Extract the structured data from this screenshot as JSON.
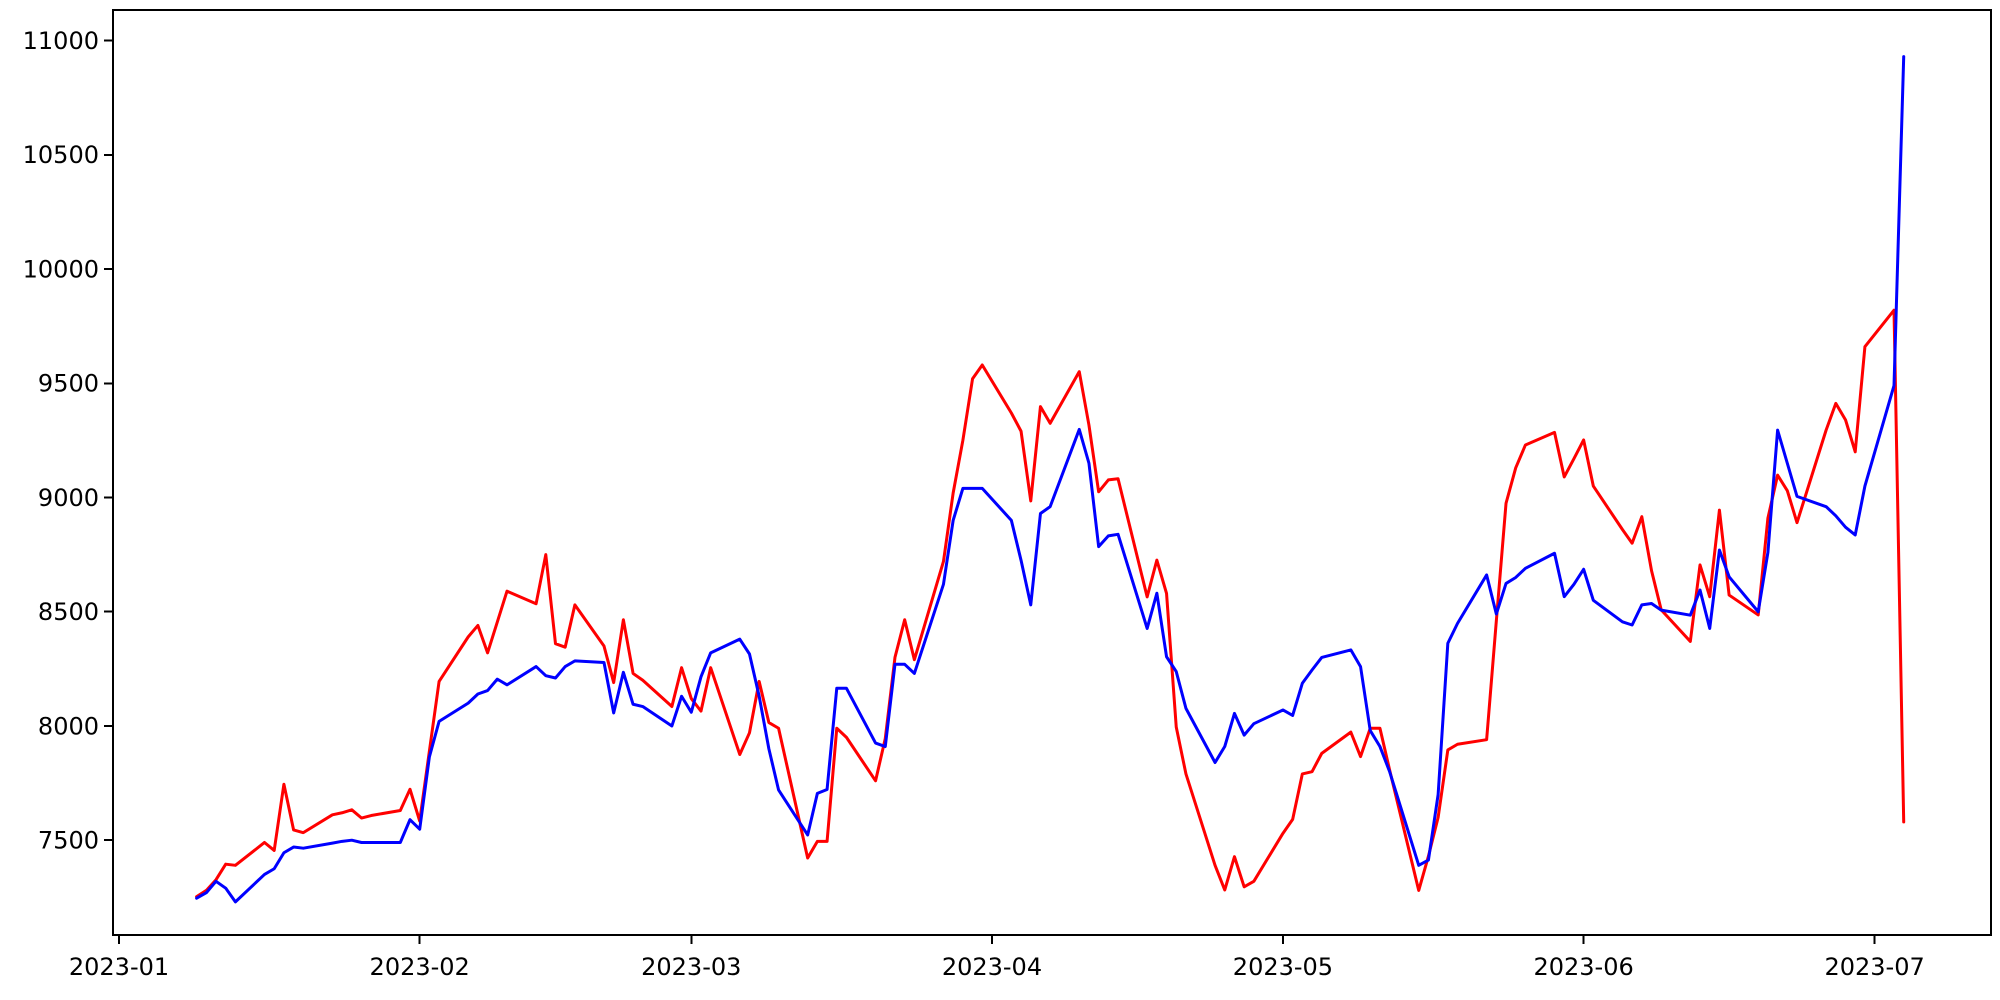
{
  "chart_data": {
    "type": "line",
    "title": "",
    "xlabel": "",
    "ylabel": "",
    "grid": false,
    "legend": null,
    "background_color": "#ffffff",
    "spine_color": "#000000",
    "tick_label_color": "#000000",
    "ylim": [
      7085,
      11134
    ],
    "xlim_days_from_jan1_2023": [
      -0.62,
      193.0
    ],
    "y_ticks": [
      7500,
      8000,
      8500,
      9000,
      9500,
      10000,
      10500,
      11000
    ],
    "x_ticks": [
      {
        "label": "2023-01",
        "date": "2023-01-01"
      },
      {
        "label": "2023-02",
        "date": "2023-02-01"
      },
      {
        "label": "2023-03",
        "date": "2023-03-01"
      },
      {
        "label": "2023-04",
        "date": "2023-04-01"
      },
      {
        "label": "2023-05",
        "date": "2023-05-01"
      },
      {
        "label": "2023-06",
        "date": "2023-06-01"
      },
      {
        "label": "2023-07",
        "date": "2023-07-01"
      }
    ],
    "x": [
      "2023-01-09",
      "2023-01-10",
      "2023-01-11",
      "2023-01-12",
      "2023-01-13",
      "2023-01-16",
      "2023-01-17",
      "2023-01-18",
      "2023-01-19",
      "2023-01-20",
      "2023-01-23",
      "2023-01-24",
      "2023-01-25",
      "2023-01-26",
      "2023-01-27",
      "2023-01-30",
      "2023-01-31",
      "2023-02-01",
      "2023-02-02",
      "2023-02-03",
      "2023-02-06",
      "2023-02-07",
      "2023-02-08",
      "2023-02-09",
      "2023-02-10",
      "2023-02-13",
      "2023-02-14",
      "2023-02-15",
      "2023-02-16",
      "2023-02-17",
      "2023-02-20",
      "2023-02-21",
      "2023-02-22",
      "2023-02-23",
      "2023-02-24",
      "2023-02-27",
      "2023-02-28",
      "2023-03-01",
      "2023-03-02",
      "2023-03-03",
      "2023-03-06",
      "2023-03-07",
      "2023-03-08",
      "2023-03-09",
      "2023-03-10",
      "2023-03-13",
      "2023-03-14",
      "2023-03-15",
      "2023-03-16",
      "2023-03-17",
      "2023-03-20",
      "2023-03-21",
      "2023-03-22",
      "2023-03-23",
      "2023-03-24",
      "2023-03-27",
      "2023-03-28",
      "2023-03-29",
      "2023-03-30",
      "2023-03-31",
      "2023-04-03",
      "2023-04-04",
      "2023-04-05",
      "2023-04-06",
      "2023-04-07",
      "2023-04-10",
      "2023-04-11",
      "2023-04-12",
      "2023-04-13",
      "2023-04-14",
      "2023-04-17",
      "2023-04-18",
      "2023-04-19",
      "2023-04-20",
      "2023-04-21",
      "2023-04-24",
      "2023-04-25",
      "2023-04-26",
      "2023-04-27",
      "2023-04-28",
      "2023-05-01",
      "2023-05-02",
      "2023-05-03",
      "2023-05-04",
      "2023-05-05",
      "2023-05-08",
      "2023-05-09",
      "2023-05-10",
      "2023-05-11",
      "2023-05-12",
      "2023-05-15",
      "2023-05-16",
      "2023-05-17",
      "2023-05-18",
      "2023-05-19",
      "2023-05-22",
      "2023-05-23",
      "2023-05-24",
      "2023-05-25",
      "2023-05-26",
      "2023-05-29",
      "2023-05-30",
      "2023-05-31",
      "2023-06-01",
      "2023-06-02",
      "2023-06-05",
      "2023-06-06",
      "2023-06-07",
      "2023-06-08",
      "2023-06-09",
      "2023-06-12",
      "2023-06-13",
      "2023-06-14",
      "2023-06-15",
      "2023-06-16",
      "2023-06-19",
      "2023-06-20",
      "2023-06-21",
      "2023-06-22",
      "2023-06-23",
      "2023-06-26",
      "2023-06-27",
      "2023-06-28",
      "2023-06-29",
      "2023-06-30",
      "2023-07-03",
      "2023-07-04"
    ],
    "series": [
      {
        "name": "red",
        "color": "#ff0000",
        "line_width": 3,
        "values": [
          7253,
          7280,
          7327,
          7395,
          7390,
          7490,
          7455,
          7745,
          7545,
          7533,
          7611,
          7620,
          7633,
          7597,
          7608,
          7630,
          7723,
          7584,
          7890,
          8195,
          8390,
          8440,
          8320,
          8455,
          8590,
          8535,
          8750,
          8360,
          8345,
          8530,
          8350,
          8190,
          8465,
          8230,
          8200,
          8085,
          8255,
          8120,
          8065,
          8255,
          7875,
          7970,
          8195,
          8015,
          7990,
          7422,
          7495,
          7495,
          7990,
          7950,
          7760,
          7945,
          8300,
          8465,
          8290,
          8720,
          9020,
          9250,
          9520,
          9580,
          9370,
          9290,
          8985,
          9398,
          9325,
          9551,
          9317,
          9025,
          9077,
          9082,
          8565,
          8726,
          8580,
          7995,
          7790,
          7390,
          7282,
          7428,
          7296,
          7320,
          7530,
          7591,
          7790,
          7800,
          7880,
          7973,
          7866,
          7990,
          7990,
          7807,
          7280,
          7430,
          7600,
          7895,
          7920,
          7940,
          8460,
          8975,
          9130,
          9230,
          9285,
          9090,
          9170,
          9252,
          9050,
          8860,
          8800,
          8916,
          8680,
          8508,
          8370,
          8705,
          8566,
          8945,
          8573,
          8486,
          8910,
          9098,
          9030,
          8890,
          9295,
          9412,
          9340,
          9200,
          9660,
          9820,
          7580
        ]
      },
      {
        "name": "blue",
        "color": "#0000ff",
        "line_width": 3,
        "values": [
          7246,
          7270,
          7320,
          7290,
          7230,
          7350,
          7375,
          7445,
          7470,
          7465,
          7487,
          7495,
          7500,
          7490,
          7490,
          7490,
          7590,
          7548,
          7865,
          8020,
          8100,
          8140,
          8155,
          8205,
          8180,
          8260,
          8220,
          8210,
          8260,
          8285,
          8278,
          8057,
          8235,
          8095,
          8085,
          8000,
          8130,
          8060,
          8215,
          8320,
          8380,
          8315,
          8130,
          7900,
          7720,
          7523,
          7705,
          7722,
          8165,
          8165,
          7925,
          7910,
          8270,
          8270,
          8230,
          8620,
          8900,
          9040,
          9040,
          9040,
          8900,
          8725,
          8530,
          8930,
          8960,
          9298,
          9150,
          8785,
          8832,
          8839,
          8427,
          8581,
          8303,
          8238,
          8077,
          7840,
          7910,
          8055,
          7960,
          8010,
          8070,
          8046,
          8187,
          8245,
          8300,
          8333,
          8260,
          7980,
          7910,
          7800,
          7390,
          7413,
          7700,
          8362,
          8449,
          8661,
          8490,
          8624,
          8650,
          8690,
          8756,
          8566,
          8620,
          8686,
          8550,
          8456,
          8442,
          8530,
          8536,
          8507,
          8485,
          8595,
          8427,
          8770,
          8653,
          8500,
          8760,
          9295,
          9150,
          9005,
          8960,
          8920,
          8870,
          8836,
          9050,
          9490,
          10930
        ]
      }
    ]
  }
}
